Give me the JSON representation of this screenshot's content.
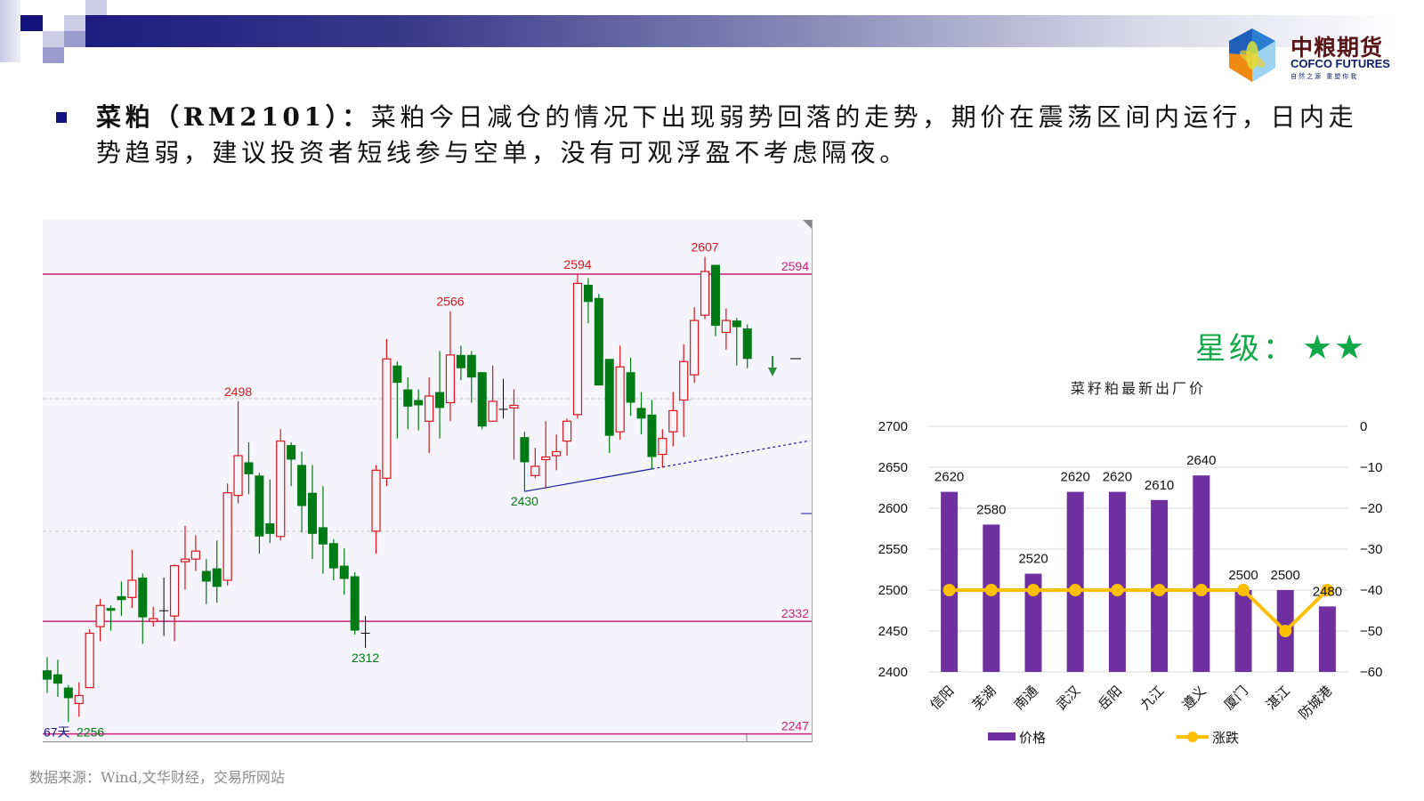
{
  "header": {
    "logo": {
      "name_cn": "中粮期货",
      "name_en": "COFCO FUTURES",
      "slogan": "自然之源 重塑你我"
    }
  },
  "commentary": {
    "title": "菜粕（RM2101）：",
    "body": "菜粕今日减仓的情况下出现弱势回落的走势，期价在震荡区间内运行，日内走势趋弱，建议投资者短线参与空单，没有可观浮盈不考虑隔夜。"
  },
  "rating": {
    "label": "星级：",
    "stars": "★★",
    "count": 2,
    "color": "#12a84a"
  },
  "source": "数据来源：Wind,文华财经，交易所网站",
  "chart_data": [
    {
      "type": "candlestick",
      "colors": {
        "up": "#d9141e",
        "down": "#007a14",
        "level_line": "#cc1f7a",
        "trendline": "#1a1aa0",
        "background": "#f5f4fa"
      },
      "ohlc": [
        [
          2295,
          2305,
          2278,
          2288
        ],
        [
          2292,
          2303,
          2275,
          2285
        ],
        [
          2282,
          2284,
          2256,
          2274
        ],
        [
          2270,
          2286,
          2260,
          2276
        ],
        [
          2282,
          2326,
          2282,
          2323
        ],
        [
          2328,
          2349,
          2317,
          2344
        ],
        [
          2342,
          2344,
          2325,
          2340
        ],
        [
          2351,
          2362,
          2336,
          2348
        ],
        [
          2350,
          2386,
          2342,
          2363
        ],
        [
          2365,
          2368,
          2315,
          2335
        ],
        [
          2332,
          2343,
          2328,
          2334
        ],
        [
          2340,
          2365,
          2321,
          2340
        ],
        [
          2336,
          2375,
          2317,
          2374
        ],
        [
          2377,
          2404,
          2356,
          2379
        ],
        [
          2379,
          2397,
          2370,
          2385
        ],
        [
          2370,
          2379,
          2345,
          2362
        ],
        [
          2372,
          2393,
          2346,
          2358
        ],
        [
          2363,
          2436,
          2359,
          2429
        ],
        [
          2427,
          2498,
          2421,
          2457
        ],
        [
          2452,
          2467,
          2428,
          2443
        ],
        [
          2442,
          2444,
          2383,
          2396
        ],
        [
          2406,
          2439,
          2391,
          2398
        ],
        [
          2396,
          2477,
          2393,
          2468
        ],
        [
          2465,
          2467,
          2434,
          2454
        ],
        [
          2450,
          2460,
          2399,
          2419
        ],
        [
          2429,
          2450,
          2379,
          2398
        ],
        [
          2403,
          2434,
          2368,
          2390
        ],
        [
          2391,
          2394,
          2363,
          2372
        ],
        [
          2374,
          2387,
          2352,
          2364
        ],
        [
          2366,
          2369,
          2322,
          2325
        ],
        [
          2323,
          2336,
          2312,
          2323
        ],
        [
          2400,
          2450,
          2383,
          2446
        ],
        [
          2440,
          2545,
          2434,
          2530
        ],
        [
          2525,
          2528,
          2470,
          2512
        ],
        [
          2507,
          2516,
          2477,
          2494
        ],
        [
          2499,
          2507,
          2476,
          2495
        ],
        [
          2483,
          2516,
          2459,
          2502
        ],
        [
          2505,
          2536,
          2470,
          2493
        ],
        [
          2497,
          2566,
          2483,
          2533
        ],
        [
          2533,
          2540,
          2514,
          2523
        ],
        [
          2533,
          2536,
          2497,
          2516
        ],
        [
          2520,
          2520,
          2477,
          2479
        ],
        [
          2483,
          2525,
          2483,
          2498
        ],
        [
          2492,
          2515,
          2485,
          2492
        ],
        [
          2493,
          2507,
          2454,
          2495
        ],
        [
          2471,
          2475,
          2430,
          2452
        ],
        [
          2442,
          2463,
          2440,
          2449
        ],
        [
          2454,
          2483,
          2432,
          2456
        ],
        [
          2457,
          2473,
          2446,
          2460
        ],
        [
          2468,
          2485,
          2457,
          2483
        ],
        [
          2488,
          2594,
          2485,
          2587
        ],
        [
          2586,
          2591,
          2557,
          2573
        ],
        [
          2576,
          2579,
          2510,
          2510
        ],
        [
          2530,
          2530,
          2459,
          2472
        ],
        [
          2475,
          2540,
          2469,
          2524
        ],
        [
          2520,
          2531,
          2487,
          2497
        ],
        [
          2493,
          2505,
          2473,
          2485
        ],
        [
          2488,
          2499,
          2447,
          2456
        ],
        [
          2458,
          2477,
          2448,
          2470
        ],
        [
          2475,
          2505,
          2464,
          2491
        ],
        [
          2499,
          2541,
          2471,
          2528
        ],
        [
          2518,
          2569,
          2512,
          2559
        ],
        [
          2563,
          2607,
          2560,
          2596
        ],
        [
          2601,
          2601,
          2547,
          2555
        ],
        [
          2550,
          2568,
          2537,
          2559
        ],
        [
          2559,
          2561,
          2525,
          2554
        ],
        [
          2553,
          2556,
          2523,
          2530
        ]
      ],
      "high_labels": [
        {
          "index": 18,
          "text": "2498"
        },
        {
          "index": 38,
          "text": "2566"
        },
        {
          "index": 50,
          "text": "2594"
        },
        {
          "index": 62,
          "text": "2607"
        }
      ],
      "low_labels": [
        {
          "index": 2,
          "text": "2256"
        },
        {
          "index": 30,
          "text": "2312"
        },
        {
          "index": 45,
          "text": "2430"
        }
      ],
      "level_lines": [
        {
          "price": 2594,
          "text": "2594"
        },
        {
          "price": 2332,
          "text": "2332"
        },
        {
          "price": 2247,
          "text": "2247"
        }
      ],
      "gridlines": [
        2400,
        2500
      ],
      "trendline": {
        "from": {
          "index": 45,
          "price": 2430
        },
        "to": {
          "index": 57,
          "price": 2447
        },
        "extended": "dotted"
      },
      "days_label": "67天",
      "signal": "down-arrow"
    },
    {
      "type": "bar",
      "title": "菜籽粕最新出厂价",
      "categories": [
        "信阳",
        "芜湖",
        "南通",
        "武汉",
        "岳阳",
        "九江",
        "遵义",
        "厦门",
        "湛江",
        "防城港"
      ],
      "series": [
        {
          "name": "价格",
          "type": "bar",
          "axis": "left",
          "color": "#7030a0",
          "values": [
            2620,
            2580,
            2520,
            2620,
            2620,
            2610,
            2640,
            2500,
            2500,
            2480
          ]
        },
        {
          "name": "涨跌",
          "type": "line",
          "axis": "right",
          "color": "#fdbf00",
          "values": [
            -40,
            -40,
            -40,
            -40,
            -40,
            -40,
            -40,
            -40,
            -50,
            -40
          ]
        }
      ],
      "y_left": {
        "range": [
          2400,
          2700
        ],
        "ticks": [
          "2700",
          "2650",
          "2600",
          "2550",
          "2500",
          "2450",
          "2400"
        ]
      },
      "y_right": {
        "range": [
          -60,
          0
        ],
        "ticks": [
          "0",
          "-10",
          "-20",
          "-30",
          "-40",
          "-50",
          "-60"
        ]
      },
      "grid": true,
      "legend": "bottom"
    }
  ]
}
